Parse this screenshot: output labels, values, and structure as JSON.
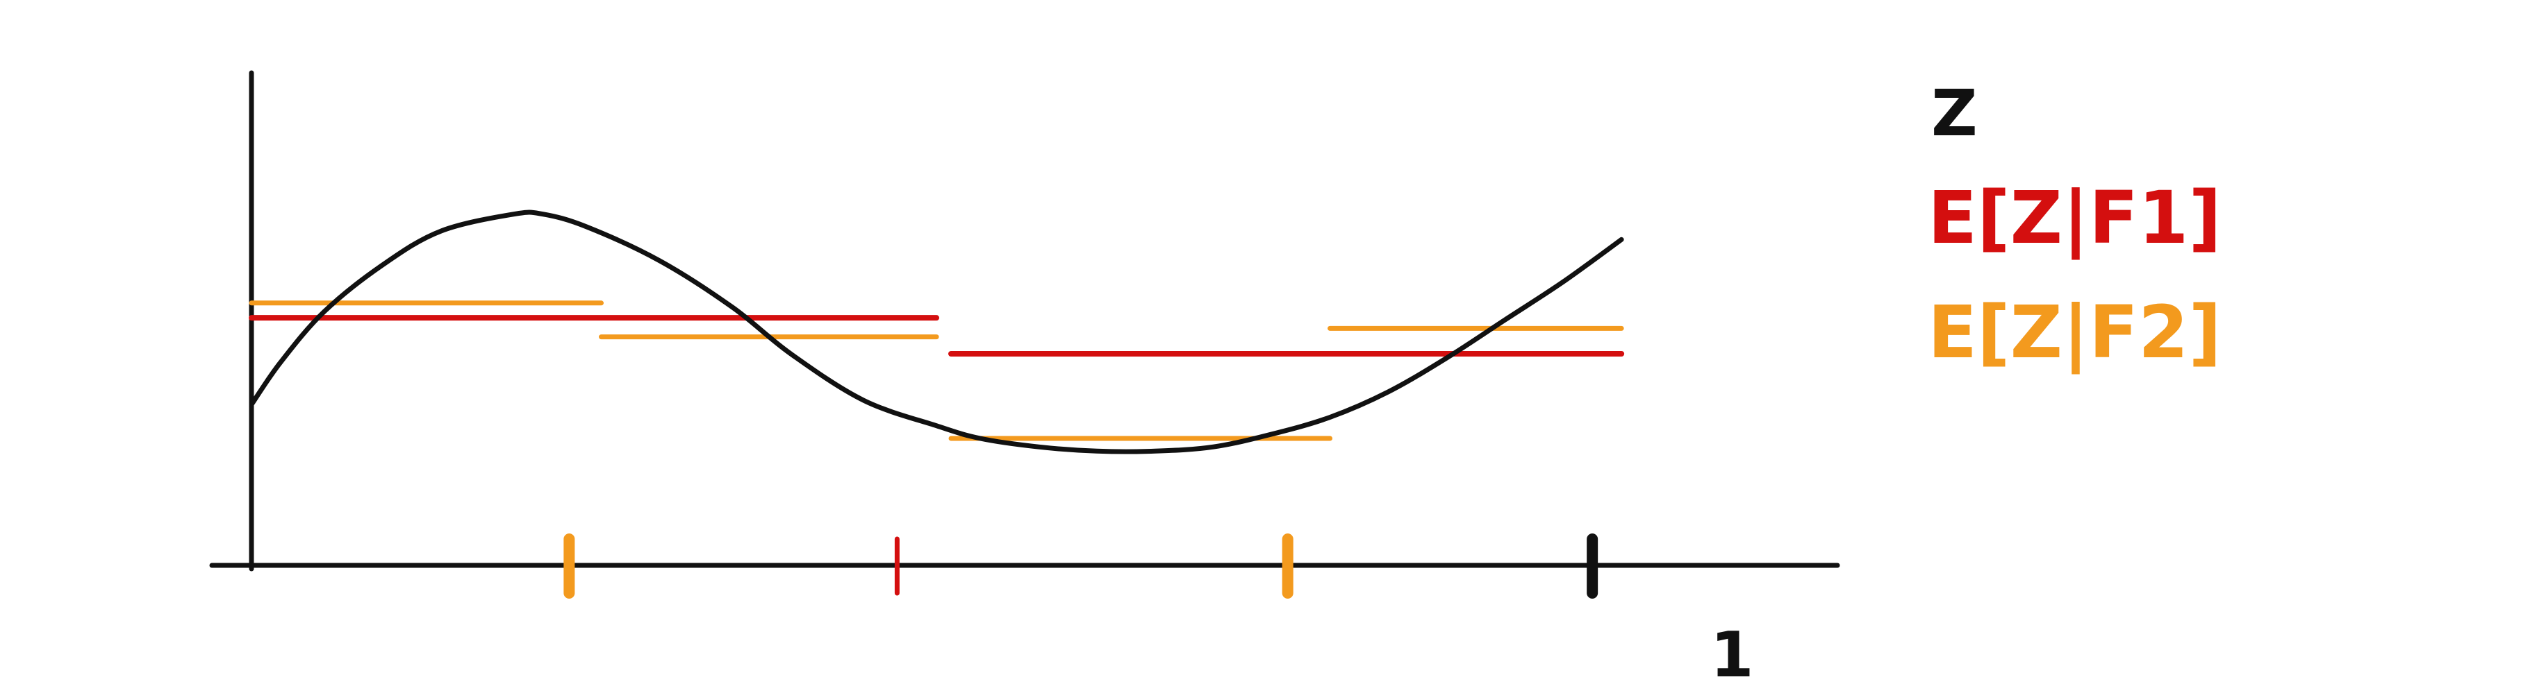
{
  "colors": {
    "background": "#ffffff",
    "axis": "#111111",
    "curve": "#111111",
    "coarse": "#d40f0f",
    "fine": "#f39a1e"
  },
  "legend": {
    "curve_label": "Z",
    "coarse_label": "E[Z|F1]",
    "fine_label": "E[Z|F2]"
  },
  "axis": {
    "end_label": "1"
  },
  "chart_data": {
    "type": "line",
    "xlim": [
      0,
      1
    ],
    "grid": false,
    "axis_ticks": [
      {
        "x": 0.218,
        "color": "fine"
      },
      {
        "x": 0.443,
        "color": "coarse"
      },
      {
        "x": 0.711,
        "color": "fine"
      },
      {
        "x": 0.92,
        "color": "axis"
      }
    ],
    "series": [
      {
        "key": "curve",
        "color": "curve",
        "x": [
          0.0,
          0.02,
          0.05,
          0.09,
          0.13,
          0.18,
          0.2,
          0.23,
          0.28,
          0.33,
          0.37,
          0.42,
          0.47,
          0.5,
          0.54,
          0.58,
          0.62,
          0.66,
          0.7,
          0.74,
          0.78,
          0.82,
          0.86,
          0.9,
          0.94
        ],
        "y": [
          0.38,
          0.48,
          0.6,
          0.71,
          0.79,
          0.83,
          0.83,
          0.8,
          0.72,
          0.61,
          0.5,
          0.39,
          0.33,
          0.3,
          0.28,
          0.27,
          0.27,
          0.28,
          0.31,
          0.35,
          0.41,
          0.49,
          0.58,
          0.67,
          0.77
        ]
      },
      {
        "key": "coarse",
        "color": "coarse",
        "steps": [
          {
            "x0": 0.0,
            "x1": 0.47,
            "y": 0.585
          },
          {
            "x0": 0.48,
            "x1": 0.94,
            "y": 0.5
          }
        ]
      },
      {
        "key": "fine",
        "color": "fine",
        "steps": [
          {
            "x0": 0.0,
            "x1": 0.24,
            "y": 0.62
          },
          {
            "x0": 0.24,
            "x1": 0.47,
            "y": 0.54
          },
          {
            "x0": 0.48,
            "x1": 0.74,
            "y": 0.3
          },
          {
            "x0": 0.74,
            "x1": 0.94,
            "y": 0.56
          }
        ]
      }
    ]
  }
}
